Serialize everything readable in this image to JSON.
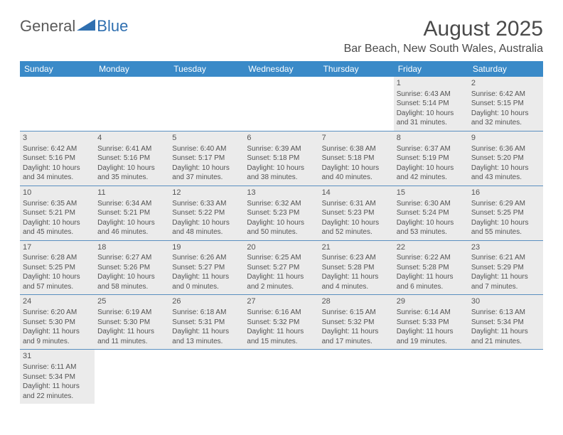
{
  "logo": {
    "text1": "General",
    "text2": "Blue",
    "triangle_color": "#2f6fb0"
  },
  "title": "August 2025",
  "location": "Bar Beach, New South Wales, Australia",
  "colors": {
    "header_bg": "#3a8ac8",
    "header_text": "#ffffff",
    "row_border": "#5a8fc0",
    "shade_bg": "#ebebeb",
    "body_text": "#535353"
  },
  "day_headers": [
    "Sunday",
    "Monday",
    "Tuesday",
    "Wednesday",
    "Thursday",
    "Friday",
    "Saturday"
  ],
  "weeks": [
    [
      null,
      null,
      null,
      null,
      null,
      {
        "n": "1",
        "sr": "6:43 AM",
        "ss": "5:14 PM",
        "dh": 10,
        "dm": 31
      },
      {
        "n": "2",
        "sr": "6:42 AM",
        "ss": "5:15 PM",
        "dh": 10,
        "dm": 32
      }
    ],
    [
      {
        "n": "3",
        "sr": "6:42 AM",
        "ss": "5:16 PM",
        "dh": 10,
        "dm": 34
      },
      {
        "n": "4",
        "sr": "6:41 AM",
        "ss": "5:16 PM",
        "dh": 10,
        "dm": 35
      },
      {
        "n": "5",
        "sr": "6:40 AM",
        "ss": "5:17 PM",
        "dh": 10,
        "dm": 37
      },
      {
        "n": "6",
        "sr": "6:39 AM",
        "ss": "5:18 PM",
        "dh": 10,
        "dm": 38
      },
      {
        "n": "7",
        "sr": "6:38 AM",
        "ss": "5:18 PM",
        "dh": 10,
        "dm": 40
      },
      {
        "n": "8",
        "sr": "6:37 AM",
        "ss": "5:19 PM",
        "dh": 10,
        "dm": 42
      },
      {
        "n": "9",
        "sr": "6:36 AM",
        "ss": "5:20 PM",
        "dh": 10,
        "dm": 43
      }
    ],
    [
      {
        "n": "10",
        "sr": "6:35 AM",
        "ss": "5:21 PM",
        "dh": 10,
        "dm": 45
      },
      {
        "n": "11",
        "sr": "6:34 AM",
        "ss": "5:21 PM",
        "dh": 10,
        "dm": 46
      },
      {
        "n": "12",
        "sr": "6:33 AM",
        "ss": "5:22 PM",
        "dh": 10,
        "dm": 48
      },
      {
        "n": "13",
        "sr": "6:32 AM",
        "ss": "5:23 PM",
        "dh": 10,
        "dm": 50
      },
      {
        "n": "14",
        "sr": "6:31 AM",
        "ss": "5:23 PM",
        "dh": 10,
        "dm": 52
      },
      {
        "n": "15",
        "sr": "6:30 AM",
        "ss": "5:24 PM",
        "dh": 10,
        "dm": 53
      },
      {
        "n": "16",
        "sr": "6:29 AM",
        "ss": "5:25 PM",
        "dh": 10,
        "dm": 55
      }
    ],
    [
      {
        "n": "17",
        "sr": "6:28 AM",
        "ss": "5:25 PM",
        "dh": 10,
        "dm": 57
      },
      {
        "n": "18",
        "sr": "6:27 AM",
        "ss": "5:26 PM",
        "dh": 10,
        "dm": 58
      },
      {
        "n": "19",
        "sr": "6:26 AM",
        "ss": "5:27 PM",
        "dh": 11,
        "dm": 0
      },
      {
        "n": "20",
        "sr": "6:25 AM",
        "ss": "5:27 PM",
        "dh": 11,
        "dm": 2
      },
      {
        "n": "21",
        "sr": "6:23 AM",
        "ss": "5:28 PM",
        "dh": 11,
        "dm": 4
      },
      {
        "n": "22",
        "sr": "6:22 AM",
        "ss": "5:28 PM",
        "dh": 11,
        "dm": 6
      },
      {
        "n": "23",
        "sr": "6:21 AM",
        "ss": "5:29 PM",
        "dh": 11,
        "dm": 7
      }
    ],
    [
      {
        "n": "24",
        "sr": "6:20 AM",
        "ss": "5:30 PM",
        "dh": 11,
        "dm": 9
      },
      {
        "n": "25",
        "sr": "6:19 AM",
        "ss": "5:30 PM",
        "dh": 11,
        "dm": 11
      },
      {
        "n": "26",
        "sr": "6:18 AM",
        "ss": "5:31 PM",
        "dh": 11,
        "dm": 13
      },
      {
        "n": "27",
        "sr": "6:16 AM",
        "ss": "5:32 PM",
        "dh": 11,
        "dm": 15
      },
      {
        "n": "28",
        "sr": "6:15 AM",
        "ss": "5:32 PM",
        "dh": 11,
        "dm": 17
      },
      {
        "n": "29",
        "sr": "6:14 AM",
        "ss": "5:33 PM",
        "dh": 11,
        "dm": 19
      },
      {
        "n": "30",
        "sr": "6:13 AM",
        "ss": "5:34 PM",
        "dh": 11,
        "dm": 21
      }
    ],
    [
      {
        "n": "31",
        "sr": "6:11 AM",
        "ss": "5:34 PM",
        "dh": 11,
        "dm": 22
      },
      null,
      null,
      null,
      null,
      null,
      null
    ]
  ],
  "labels": {
    "sunrise": "Sunrise:",
    "sunset": "Sunset:",
    "daylight": "Daylight:",
    "hours": "hours",
    "and": "and",
    "minutes": "minutes."
  }
}
